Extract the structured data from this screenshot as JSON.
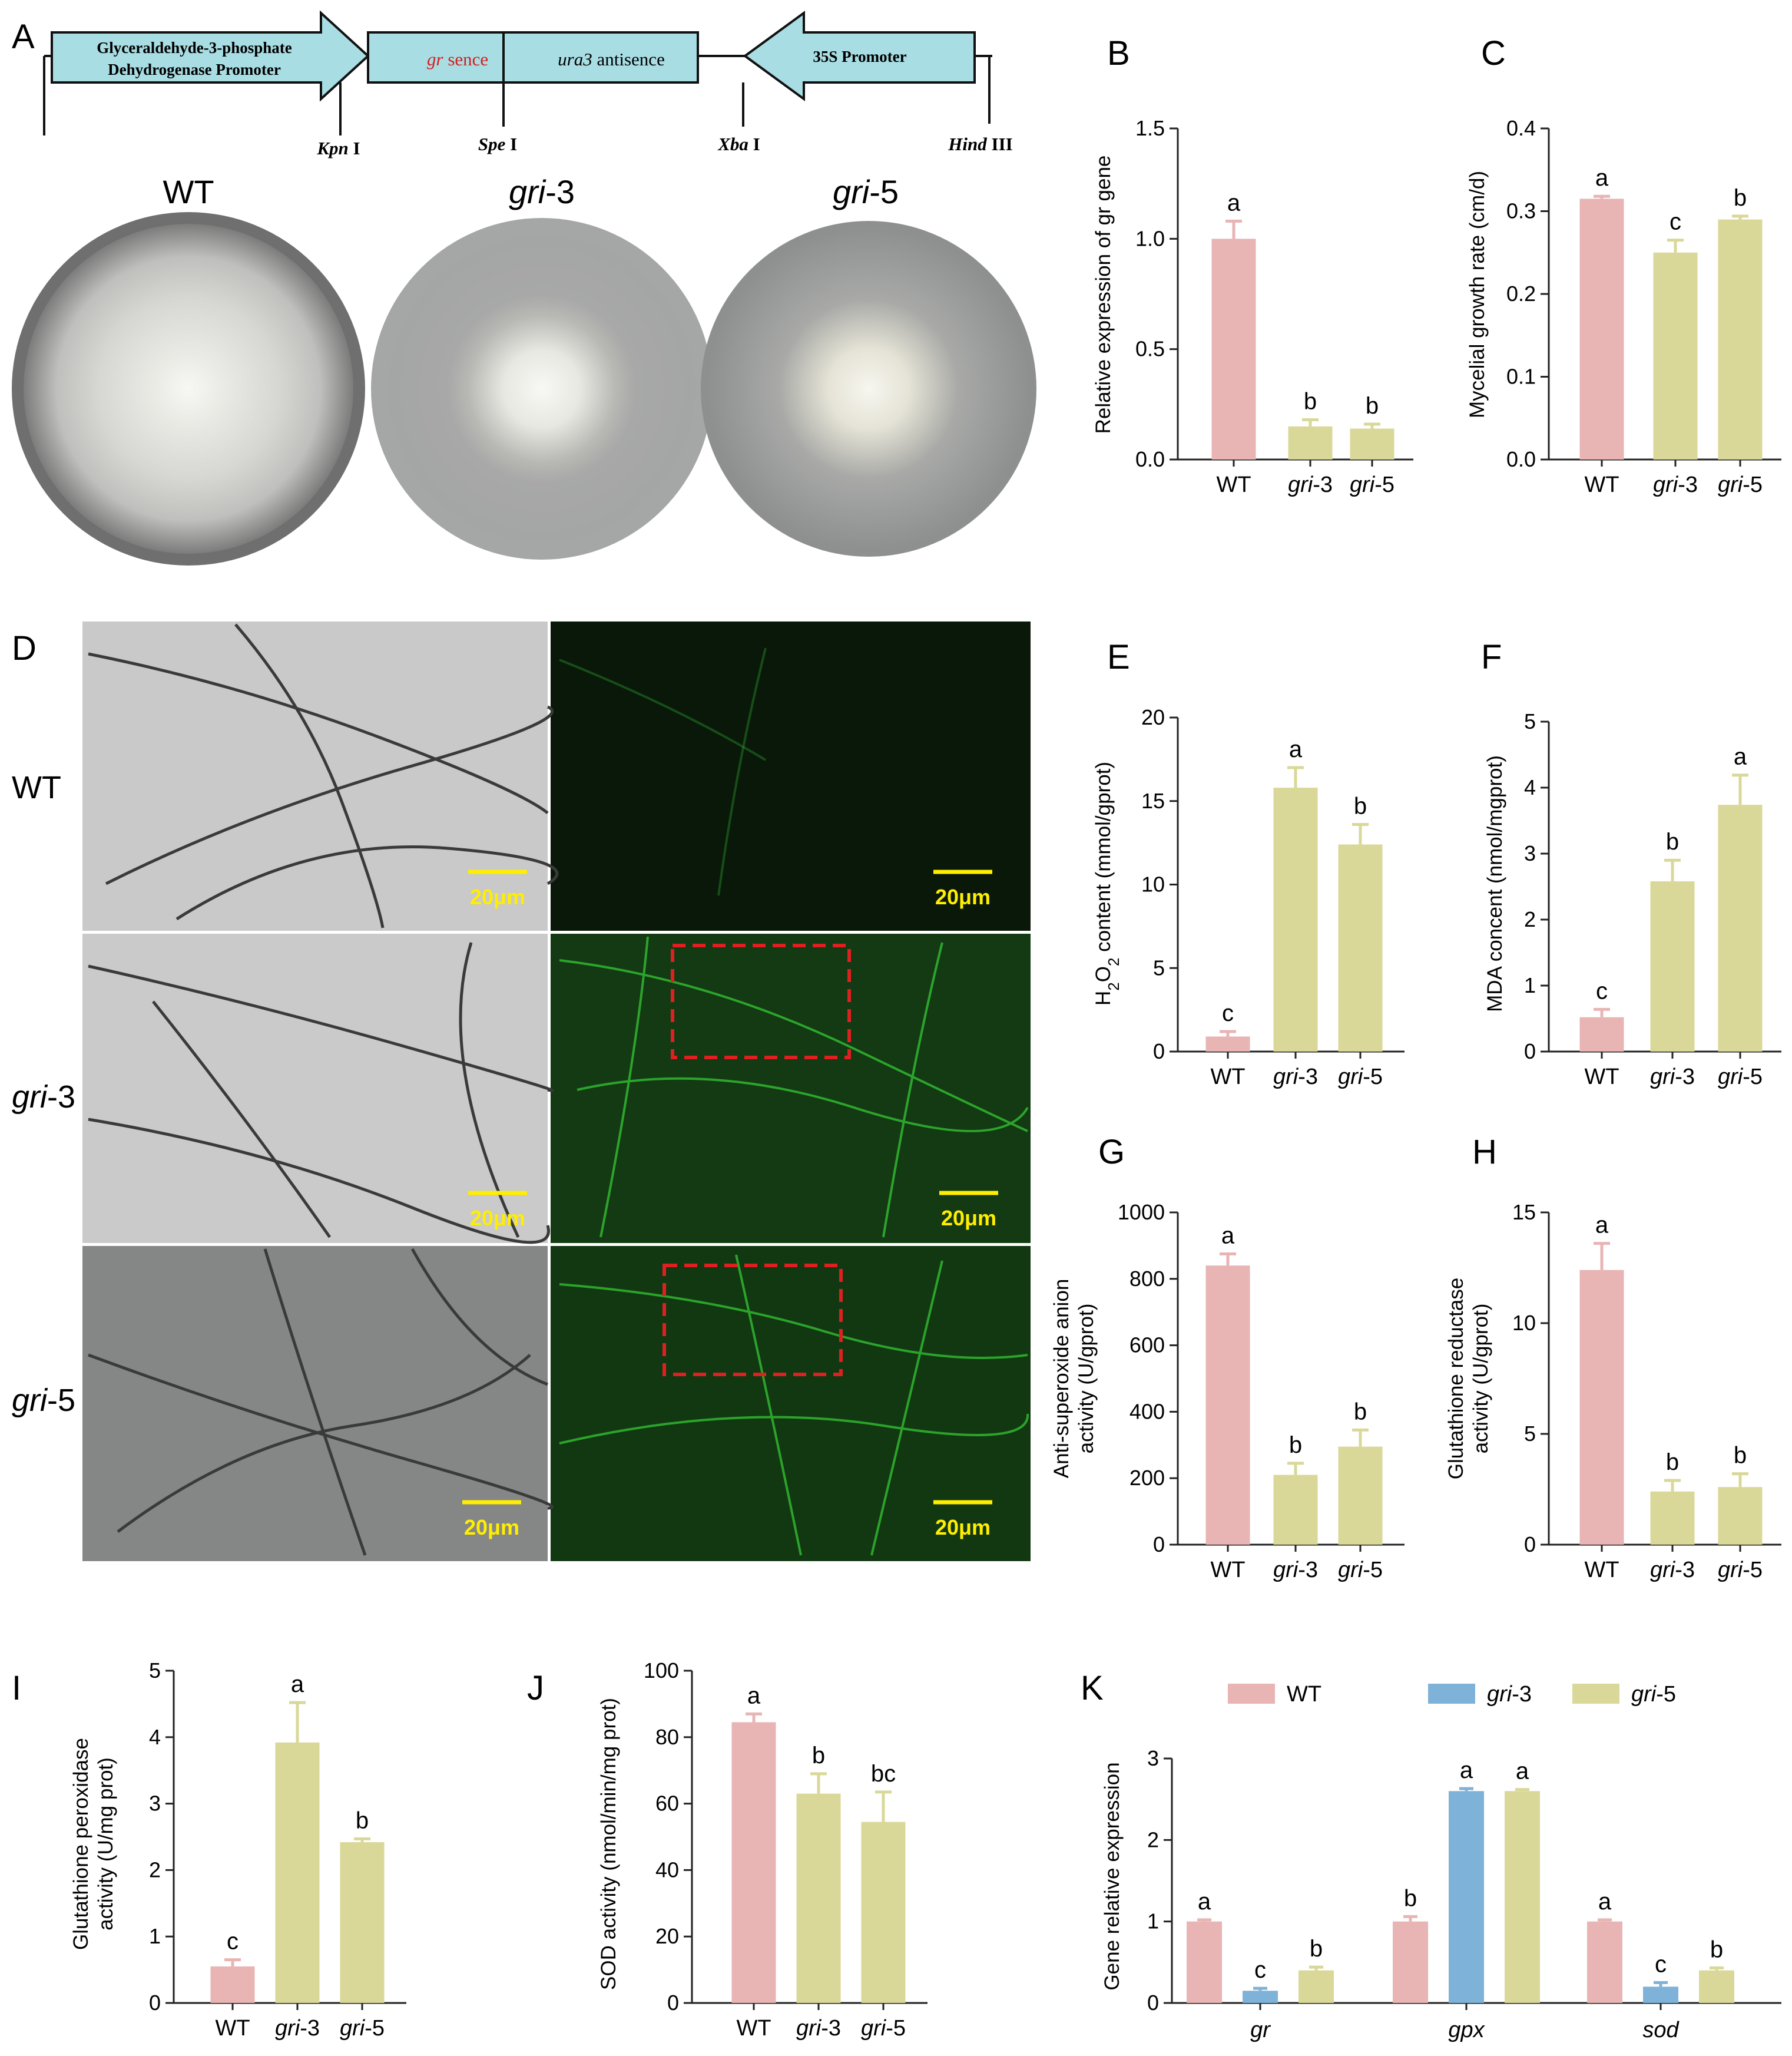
{
  "panels": {
    "A": {
      "label": "A",
      "construct": {
        "box1_line1": "Glyceraldehyde-3-phosphate",
        "box1_line2": "Dehydrogenase  Promoter",
        "gr": "gr",
        "sence": " sence",
        "ura3": "ura3",
        "antisence": " antisence",
        "promoter35s": "35S Promoter",
        "sites": [
          {
            "italic": "Kpn",
            "roman": " I"
          },
          {
            "italic": "Spe",
            "roman": " I"
          },
          {
            "italic": "Xba",
            "roman": " I"
          },
          {
            "italic": "Hind",
            "roman": " III"
          }
        ]
      },
      "plates": [
        {
          "italic": "",
          "roman": "WT"
        },
        {
          "italic": "gri",
          "roman": "-3"
        },
        {
          "italic": "gri",
          "roman": "-5"
        }
      ]
    },
    "D": {
      "label": "D",
      "rows": [
        {
          "italic": "",
          "roman": "WT"
        },
        {
          "italic": "gri",
          "roman": "-3"
        },
        {
          "italic": "gri",
          "roman": "-5"
        }
      ],
      "scale_bar": "20μm"
    }
  },
  "colors": {
    "wt": "#e8b4b4",
    "gri5": "#d9d898",
    "gri3_blue": "#7fb2d8",
    "bar_edge": "#c98e8e",
    "dashed_box": "#e02020"
  },
  "chart_data": [
    {
      "id": "B",
      "label": "B",
      "type": "bar",
      "categories": [
        "WT",
        "gri-3",
        "gri-5"
      ],
      "values": [
        1.0,
        0.15,
        0.14
      ],
      "errors": [
        0.08,
        0.03,
        0.02
      ],
      "sig": [
        "a",
        "b",
        "b"
      ],
      "ylabel": "Relative expression of gr gene",
      "ylim": [
        0,
        1.5
      ],
      "yticks": [
        0.0,
        0.5,
        1.0,
        1.5
      ],
      "tick_format": "0.0"
    },
    {
      "id": "C",
      "label": "C",
      "type": "bar",
      "categories": [
        "WT",
        "gri-3",
        "gri-5"
      ],
      "values": [
        0.315,
        0.25,
        0.29
      ],
      "errors": [
        0.003,
        0.015,
        0.004
      ],
      "sig": [
        "a",
        "c",
        "b"
      ],
      "ylabel": "Mycelial growth rate (cm/d)",
      "ylim": [
        0,
        0.4
      ],
      "yticks": [
        0.0,
        0.1,
        0.2,
        0.3,
        0.4
      ],
      "tick_format": "0.0"
    },
    {
      "id": "E",
      "label": "E",
      "type": "bar",
      "categories": [
        "WT",
        "gri-3",
        "gri-5"
      ],
      "values": [
        0.9,
        15.8,
        12.4
      ],
      "errors": [
        0.3,
        1.2,
        1.2
      ],
      "sig": [
        "c",
        "a",
        "b"
      ],
      "ylabel": "H2O2 content (mmol/gprot)",
      "ylim": [
        0,
        20
      ],
      "yticks": [
        0,
        5,
        10,
        15,
        20
      ],
      "tick_format": "0"
    },
    {
      "id": "F",
      "label": "F",
      "type": "bar",
      "categories": [
        "WT",
        "gri-3",
        "gri-5"
      ],
      "values": [
        0.52,
        2.58,
        3.74
      ],
      "errors": [
        0.12,
        0.32,
        0.45
      ],
      "sig": [
        "c",
        "b",
        "a"
      ],
      "ylabel": "MDA concent (nmol/mgprot)",
      "ylim": [
        0,
        5
      ],
      "yticks": [
        0,
        1,
        2,
        3,
        4,
        5
      ],
      "tick_format": "0"
    },
    {
      "id": "G",
      "label": "G",
      "type": "bar",
      "categories": [
        "WT",
        "gri-3",
        "gri-5"
      ],
      "values": [
        840,
        210,
        295
      ],
      "errors": [
        35,
        35,
        50
      ],
      "sig": [
        "a",
        "b",
        "b"
      ],
      "ylabel": "Anti-superoxide anion activity (U/gprot)",
      "ylim": [
        0,
        1000
      ],
      "yticks": [
        0,
        200,
        400,
        600,
        800,
        1000
      ],
      "tick_format": "0"
    },
    {
      "id": "H",
      "label": "H",
      "type": "bar",
      "categories": [
        "WT",
        "gri-3",
        "gri-5"
      ],
      "values": [
        12.4,
        2.4,
        2.6
      ],
      "errors": [
        1.2,
        0.5,
        0.6
      ],
      "sig": [
        "a",
        "b",
        "b"
      ],
      "ylabel": "Glutathione reductase activity (U/gprot)",
      "ylim": [
        0,
        15
      ],
      "yticks": [
        0,
        5,
        10,
        15
      ],
      "tick_format": "0"
    },
    {
      "id": "I",
      "label": "I",
      "type": "bar",
      "categories": [
        "WT",
        "gri-3",
        "gri-5"
      ],
      "values": [
        0.55,
        3.92,
        2.42
      ],
      "errors": [
        0.1,
        0.6,
        0.05
      ],
      "sig": [
        "c",
        "a",
        "b"
      ],
      "ylabel": "Glutathione peroxidase activity (U/mg prot)",
      "ylim": [
        0,
        5
      ],
      "yticks": [
        0,
        1,
        2,
        3,
        4,
        5
      ],
      "tick_format": "0"
    },
    {
      "id": "J",
      "label": "J",
      "type": "bar",
      "categories": [
        "WT",
        "gri-3",
        "gri-5"
      ],
      "values": [
        84.5,
        63.0,
        54.5
      ],
      "errors": [
        2.5,
        6.0,
        9.0
      ],
      "sig": [
        "a",
        "b",
        "bc"
      ],
      "ylabel": "SOD activity (nmol/min/mg prot)",
      "ylim": [
        0,
        100
      ],
      "yticks": [
        0,
        20,
        40,
        60,
        80,
        100
      ],
      "tick_format": "0"
    },
    {
      "id": "K",
      "label": "K",
      "type": "bar",
      "categories": [
        "gr",
        "gpx",
        "sod"
      ],
      "series": [
        {
          "name": "WT",
          "values": [
            1.0,
            1.0,
            1.0
          ],
          "errors": [
            0.02,
            0.06,
            0.02
          ],
          "sig": [
            "a",
            "b",
            "a"
          ]
        },
        {
          "name": "gri-3",
          "values": [
            0.15,
            2.6,
            0.2
          ],
          "errors": [
            0.03,
            0.03,
            0.05
          ],
          "sig": [
            "c",
            "a",
            "c"
          ]
        },
        {
          "name": "gri-5",
          "values": [
            0.4,
            2.6,
            0.4
          ],
          "errors": [
            0.04,
            0.02,
            0.03
          ],
          "sig": [
            "b",
            "a",
            "b"
          ]
        }
      ],
      "ylabel": "Gene relative expression",
      "ylim": [
        0,
        3
      ],
      "yticks": [
        0,
        1,
        2,
        3
      ],
      "tick_format": "0",
      "legend": "top"
    }
  ]
}
